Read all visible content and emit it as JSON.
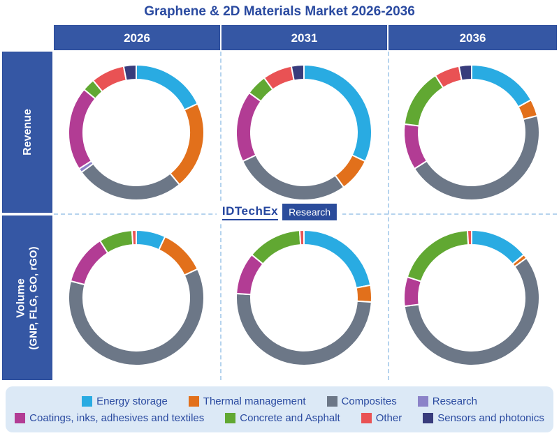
{
  "title": "Graphene & 2D Materials Market 2026-2036",
  "columns": [
    "2026",
    "2031",
    "2036"
  ],
  "rows": {
    "revenue_label": "Revenue",
    "volume_label": "Volume",
    "volume_sublabel": "(GNP, FLG, GO, rGO)"
  },
  "logo": {
    "brand": "IDTechEx",
    "suffix": "Research"
  },
  "colors": {
    "header_blue": "#3557A4",
    "title_text": "#2A4AA0",
    "legend_bg": "#DCE9F6",
    "dashed_line": "#B5D3EE"
  },
  "legend": [
    {
      "label": "Energy storage",
      "color": "#29ABE2"
    },
    {
      "label": "Thermal management",
      "color": "#E2701B"
    },
    {
      "label": "Composites",
      "color": "#6C7787"
    },
    {
      "label": "Research",
      "color": "#8B82C8"
    },
    {
      "label": "Coatings, inks, adhesives and textiles",
      "color": "#B23C94"
    },
    {
      "label": "Concrete and Asphalt",
      "color": "#61A832"
    },
    {
      "label": "Other",
      "color": "#E95254"
    },
    {
      "label": "Sensors and photonics",
      "color": "#383C7C"
    }
  ],
  "chart_data": [
    {
      "type": "pie",
      "subtype": "donut",
      "title": "Revenue 2026",
      "row": "Revenue",
      "column": "2026",
      "categories": [
        "Energy storage",
        "Thermal management",
        "Composites",
        "Research",
        "Coatings, inks, adhesives and textiles",
        "Concrete and Asphalt",
        "Other",
        "Sensors and photonics"
      ],
      "values": [
        18,
        21,
        26,
        1,
        20,
        3,
        8,
        3
      ]
    },
    {
      "type": "pie",
      "subtype": "donut",
      "title": "Revenue 2031",
      "row": "Revenue",
      "column": "2031",
      "categories": [
        "Energy storage",
        "Thermal management",
        "Composites",
        "Research",
        "Coatings, inks, adhesives and textiles",
        "Concrete and Asphalt",
        "Other",
        "Sensors and photonics"
      ],
      "values": [
        32,
        8,
        28,
        0,
        17,
        5,
        7,
        3
      ]
    },
    {
      "type": "pie",
      "subtype": "donut",
      "title": "Revenue 2036",
      "row": "Revenue",
      "column": "2036",
      "categories": [
        "Energy storage",
        "Thermal management",
        "Composites",
        "Research",
        "Coatings, inks, adhesives and textiles",
        "Concrete and Asphalt",
        "Other",
        "Sensors and photonics"
      ],
      "values": [
        17,
        4,
        45,
        0,
        11,
        14,
        6,
        3
      ]
    },
    {
      "type": "pie",
      "subtype": "donut",
      "title": "Volume 2026",
      "row": "Volume (GNP, FLG, GO, rGO)",
      "column": "2026",
      "categories": [
        "Energy storage",
        "Thermal management",
        "Composites",
        "Research",
        "Coatings, inks, adhesives and textiles",
        "Concrete and Asphalt",
        "Other",
        "Sensors and photonics"
      ],
      "values": [
        7,
        11,
        61,
        0,
        12,
        8,
        1,
        0
      ]
    },
    {
      "type": "pie",
      "subtype": "donut",
      "title": "Volume 2031",
      "row": "Volume (GNP, FLG, GO, rGO)",
      "column": "2031",
      "categories": [
        "Energy storage",
        "Thermal management",
        "Composites",
        "Research",
        "Coatings, inks, adhesives and textiles",
        "Concrete and Asphalt",
        "Other",
        "Sensors and photonics"
      ],
      "values": [
        22,
        4,
        50,
        0,
        10,
        13,
        1,
        0
      ]
    },
    {
      "type": "pie",
      "subtype": "donut",
      "title": "Volume 2036",
      "row": "Volume (GNP, FLG, GO, rGO)",
      "column": "2036",
      "categories": [
        "Energy storage",
        "Thermal management",
        "Composites",
        "Research",
        "Coatings, inks, adhesives and textiles",
        "Concrete and Asphalt",
        "Other",
        "Sensors and photonics"
      ],
      "values": [
        14,
        1,
        58,
        0,
        7,
        19,
        1,
        0
      ]
    }
  ]
}
